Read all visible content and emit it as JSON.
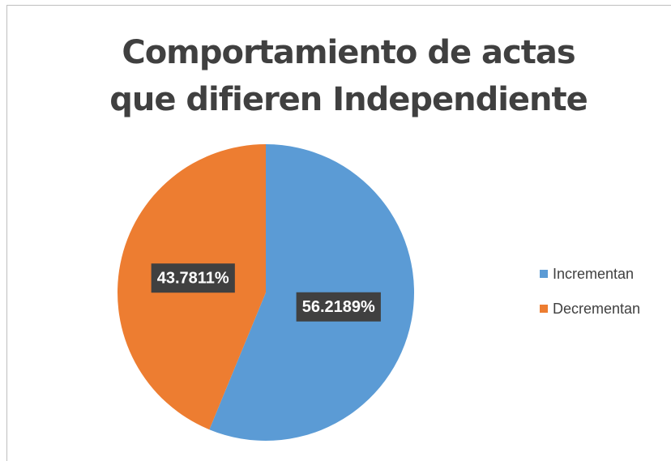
{
  "chart_data": {
    "type": "pie",
    "title": "Comportamiento de actas que difieren Independiente",
    "categories": [
      "Incrementan",
      "Decrementan"
    ],
    "values": [
      56.2189,
      43.7811
    ],
    "value_labels": [
      "56.2189%",
      "43.7811%"
    ],
    "colors": [
      "#5b9bd5",
      "#ed7d31"
    ],
    "legend": "right"
  }
}
